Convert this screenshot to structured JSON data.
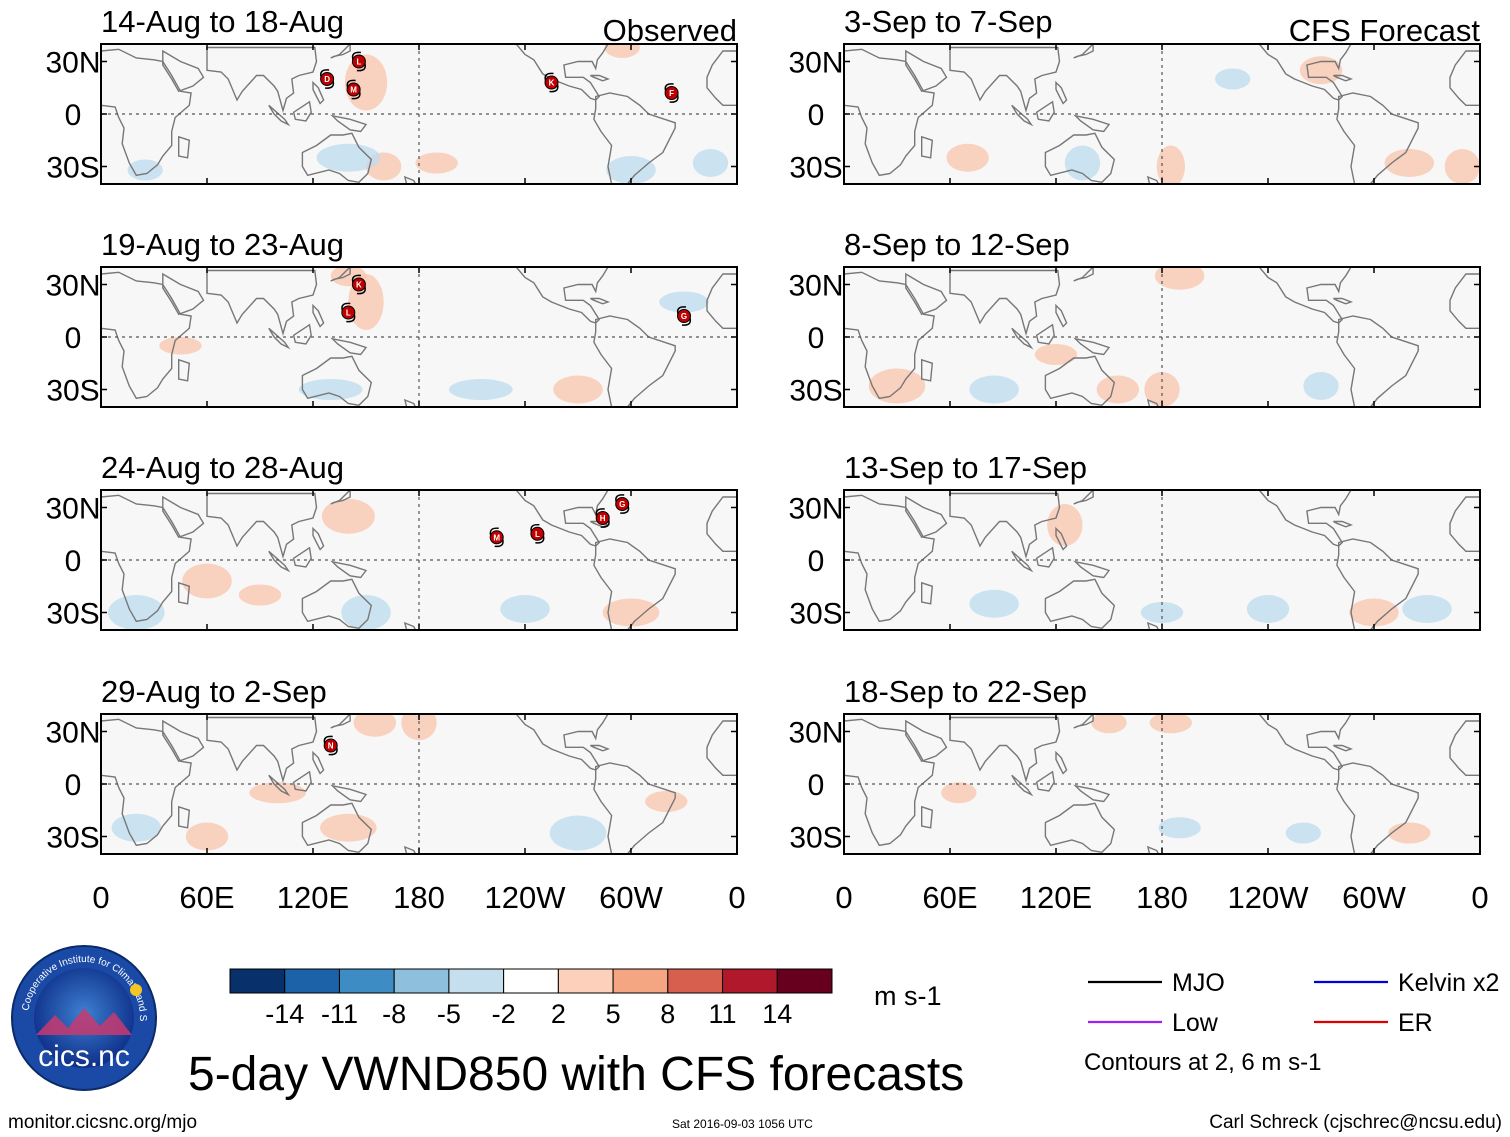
{
  "chart_data": {
    "type": "heatmap",
    "title": "5-day VWND850 with CFS forecasts",
    "units": "m s-1",
    "columns": [
      {
        "label": "Observed",
        "periods": [
          {
            "label": "14-Aug to 18-Aug",
            "storms": [
              {
                "letter": "D",
                "lon": 128,
                "lat": 20
              },
              {
                "letter": "L",
                "lon": 146,
                "lat": 30
              },
              {
                "letter": "M",
                "lon": 143,
                "lat": 14
              },
              {
                "letter": "K",
                "lon": -105,
                "lat": 18
              },
              {
                "letter": "F",
                "lon": -37,
                "lat": 12
              }
            ]
          },
          {
            "label": "19-Aug to 23-Aug",
            "storms": [
              {
                "letter": "K",
                "lon": 146,
                "lat": 30
              },
              {
                "letter": "L",
                "lon": 140,
                "lat": 14
              },
              {
                "letter": "G",
                "lon": -30,
                "lat": 12
              }
            ]
          },
          {
            "label": "24-Aug to 28-Aug",
            "storms": [
              {
                "letter": "M",
                "lon": -136,
                "lat": 13
              },
              {
                "letter": "L",
                "lon": -113,
                "lat": 15
              },
              {
                "letter": "H",
                "lon": -76,
                "lat": 24
              },
              {
                "letter": "G",
                "lon": -65,
                "lat": 32
              }
            ]
          },
          {
            "label": "29-Aug to 2-Sep",
            "storms": [
              {
                "letter": "N",
                "lon": 130,
                "lat": 22
              }
            ]
          }
        ]
      },
      {
        "label": "CFS Forecast",
        "periods": [
          {
            "label": "3-Sep to 7-Sep",
            "storms": []
          },
          {
            "label": "8-Sep to 12-Sep",
            "storms": []
          },
          {
            "label": "13-Sep to 17-Sep",
            "storms": []
          },
          {
            "label": "18-Sep to 22-Sep",
            "storms": []
          }
        ]
      }
    ],
    "x_axis": {
      "range_lon": [
        0,
        360
      ],
      "tick_labels": [
        "0",
        "60E",
        "120E",
        "180",
        "120W",
        "60W",
        "0"
      ],
      "tick_lons": [
        0,
        60,
        120,
        180,
        240,
        300,
        360
      ]
    },
    "y_axis": {
      "range_lat": [
        -40,
        40
      ],
      "tick_labels": [
        "30N",
        "0",
        "30S"
      ],
      "tick_lats": [
        30,
        0,
        -30
      ]
    },
    "colorbar": {
      "ticks": [
        "-14",
        "-11",
        "-8",
        "-5",
        "-2",
        "2",
        "5",
        "8",
        "11",
        "14"
      ],
      "colors": [
        "#08306b",
        "#1c62a8",
        "#3d8cc4",
        "#8ec0dd",
        "#c6dfee",
        "#ffffff",
        "#fdd0bb",
        "#f4a582",
        "#d6604d",
        "#b2182b",
        "#67001f"
      ],
      "units": "m s-1"
    },
    "legend": {
      "items": [
        {
          "label": "MJO",
          "color": "#000000"
        },
        {
          "label": "Kelvin x2",
          "color": "#0000dd"
        },
        {
          "label": "Low",
          "color": "#a020f0"
        },
        {
          "label": "ER",
          "color": "#dd0000"
        }
      ],
      "note": "Contours at 2, 6 m s-1"
    }
  },
  "footer": {
    "left": "monitor.cicsnc.org/mjo",
    "center": "Sat 2016-09-03 1056 UTC",
    "right": "Carl Schreck (cjschrec@ncsu.edu)"
  },
  "logo": {
    "text": "cics.nc",
    "ring_text": "Cooperative Institute for Climate and Satellites"
  },
  "colors": {
    "coast": "#777777",
    "shade_pos": "#f9c7b0",
    "shade_neg": "#bfdcee",
    "bg": "#f7f7f7"
  }
}
